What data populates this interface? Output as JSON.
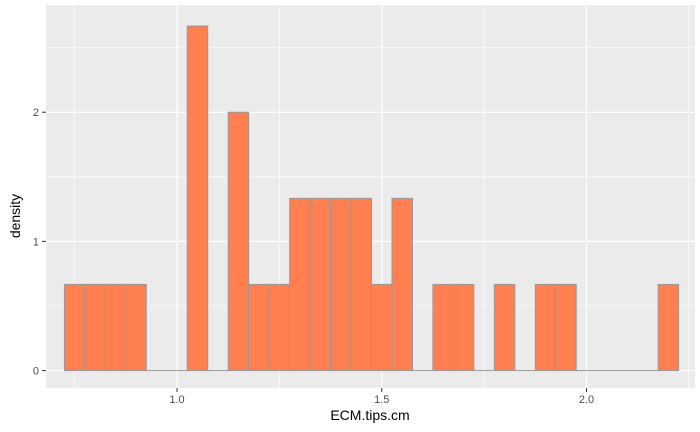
{
  "chart_data": {
    "type": "bar",
    "xlabel": "ECM.tips.cm",
    "ylabel": "density",
    "xlim": [
      0.68,
      2.265
    ],
    "ylim": [
      -0.135,
      2.83
    ],
    "x_ticks": [
      1.0,
      1.5,
      2.0
    ],
    "x_tick_labels": [
      "1.0",
      "1.5",
      "2.0"
    ],
    "y_ticks": [
      0,
      1,
      2
    ],
    "y_tick_labels": [
      "0",
      "1",
      "2"
    ],
    "bin_start": 0.725,
    "bin_width": 0.05,
    "values": [
      0.667,
      0.667,
      0.667,
      0.667,
      0,
      0,
      2.667,
      0,
      2.0,
      0.667,
      0.667,
      1.333,
      1.333,
      1.333,
      1.333,
      0.667,
      1.333,
      0,
      0.667,
      0.667,
      0,
      0.667,
      0,
      0.667,
      0.667,
      0,
      0,
      0,
      0,
      0.667
    ],
    "grid": true,
    "bar_fill": "#ff7f50",
    "bar_stroke": "#999999",
    "panel_bg": "#ebebeb",
    "grid_color": "#ffffff"
  }
}
